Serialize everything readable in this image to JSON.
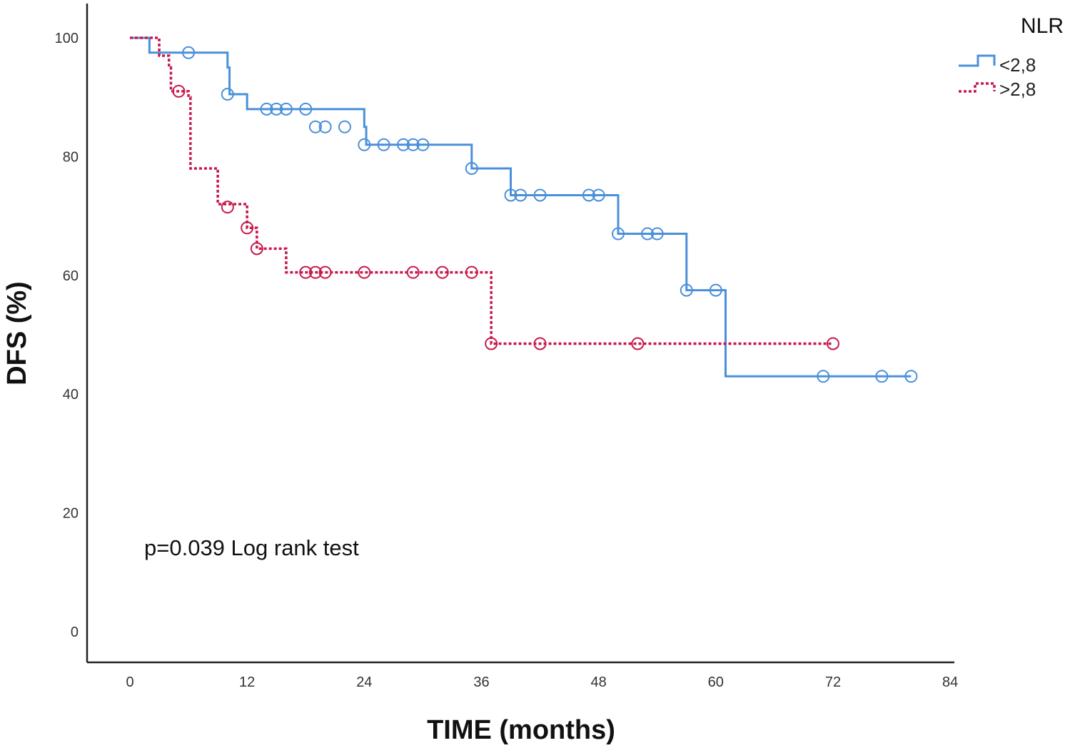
{
  "chart_data": {
    "type": "line",
    "subtype": "kaplan-meier step plot with censoring marks",
    "xlabel": "TIME (months)",
    "ylabel": "DFS (%)",
    "xlim": [
      0,
      84
    ],
    "ylim": [
      0,
      100
    ],
    "xticks": [
      0,
      12,
      24,
      36,
      48,
      60,
      72,
      84
    ],
    "yticks": [
      0,
      20,
      40,
      60,
      80,
      100
    ],
    "grid": false,
    "legend": {
      "title": "NLR",
      "position": "top-right"
    },
    "annotation": "p=0.039 Log rank test",
    "series": [
      {
        "name": "<2,8",
        "color": "#4a90d9",
        "line_style": "solid",
        "steps": [
          [
            0,
            100
          ],
          [
            2,
            97.5
          ],
          [
            10,
            95
          ],
          [
            10.2,
            90.5
          ],
          [
            12,
            88
          ],
          [
            24,
            85
          ],
          [
            24.2,
            82
          ],
          [
            35,
            78
          ],
          [
            39,
            73.5
          ],
          [
            50,
            67
          ],
          [
            57,
            57.5
          ],
          [
            61,
            43
          ],
          [
            80,
            43
          ]
        ],
        "censored": [
          [
            6,
            97.5
          ],
          [
            10,
            90.5
          ],
          [
            14,
            88
          ],
          [
            15,
            88
          ],
          [
            16,
            88
          ],
          [
            18,
            88
          ],
          [
            19,
            85
          ],
          [
            20,
            85
          ],
          [
            22,
            85
          ],
          [
            24,
            82
          ],
          [
            26,
            82
          ],
          [
            28,
            82
          ],
          [
            29,
            82
          ],
          [
            30,
            82
          ],
          [
            35,
            78
          ],
          [
            39,
            73.5
          ],
          [
            40,
            73.5
          ],
          [
            42,
            73.5
          ],
          [
            47,
            73.5
          ],
          [
            48,
            73.5
          ],
          [
            50,
            67
          ],
          [
            53,
            67
          ],
          [
            54,
            67
          ],
          [
            57,
            57.5
          ],
          [
            60,
            57.5
          ],
          [
            71,
            43
          ],
          [
            77,
            43
          ],
          [
            80,
            43
          ]
        ]
      },
      {
        "name": ">2,8",
        "color": "#c8194b",
        "line_style": "dotted",
        "steps": [
          [
            0,
            100
          ],
          [
            3,
            97
          ],
          [
            4,
            95
          ],
          [
            4.2,
            91
          ],
          [
            6,
            90
          ],
          [
            6.2,
            78
          ],
          [
            9,
            72
          ],
          [
            12,
            68
          ],
          [
            13,
            64.5
          ],
          [
            16,
            60.5
          ],
          [
            37,
            48.5
          ],
          [
            72,
            48.5
          ]
        ],
        "censored": [
          [
            5,
            91
          ],
          [
            10,
            71.5
          ],
          [
            12,
            68
          ],
          [
            13,
            64.5
          ],
          [
            18,
            60.5
          ],
          [
            19,
            60.5
          ],
          [
            20,
            60.5
          ],
          [
            24,
            60.5
          ],
          [
            29,
            60.5
          ],
          [
            32,
            60.5
          ],
          [
            35,
            60.5
          ],
          [
            37,
            48.5
          ],
          [
            42,
            48.5
          ],
          [
            52,
            48.5
          ],
          [
            72,
            48.5
          ]
        ]
      }
    ]
  }
}
